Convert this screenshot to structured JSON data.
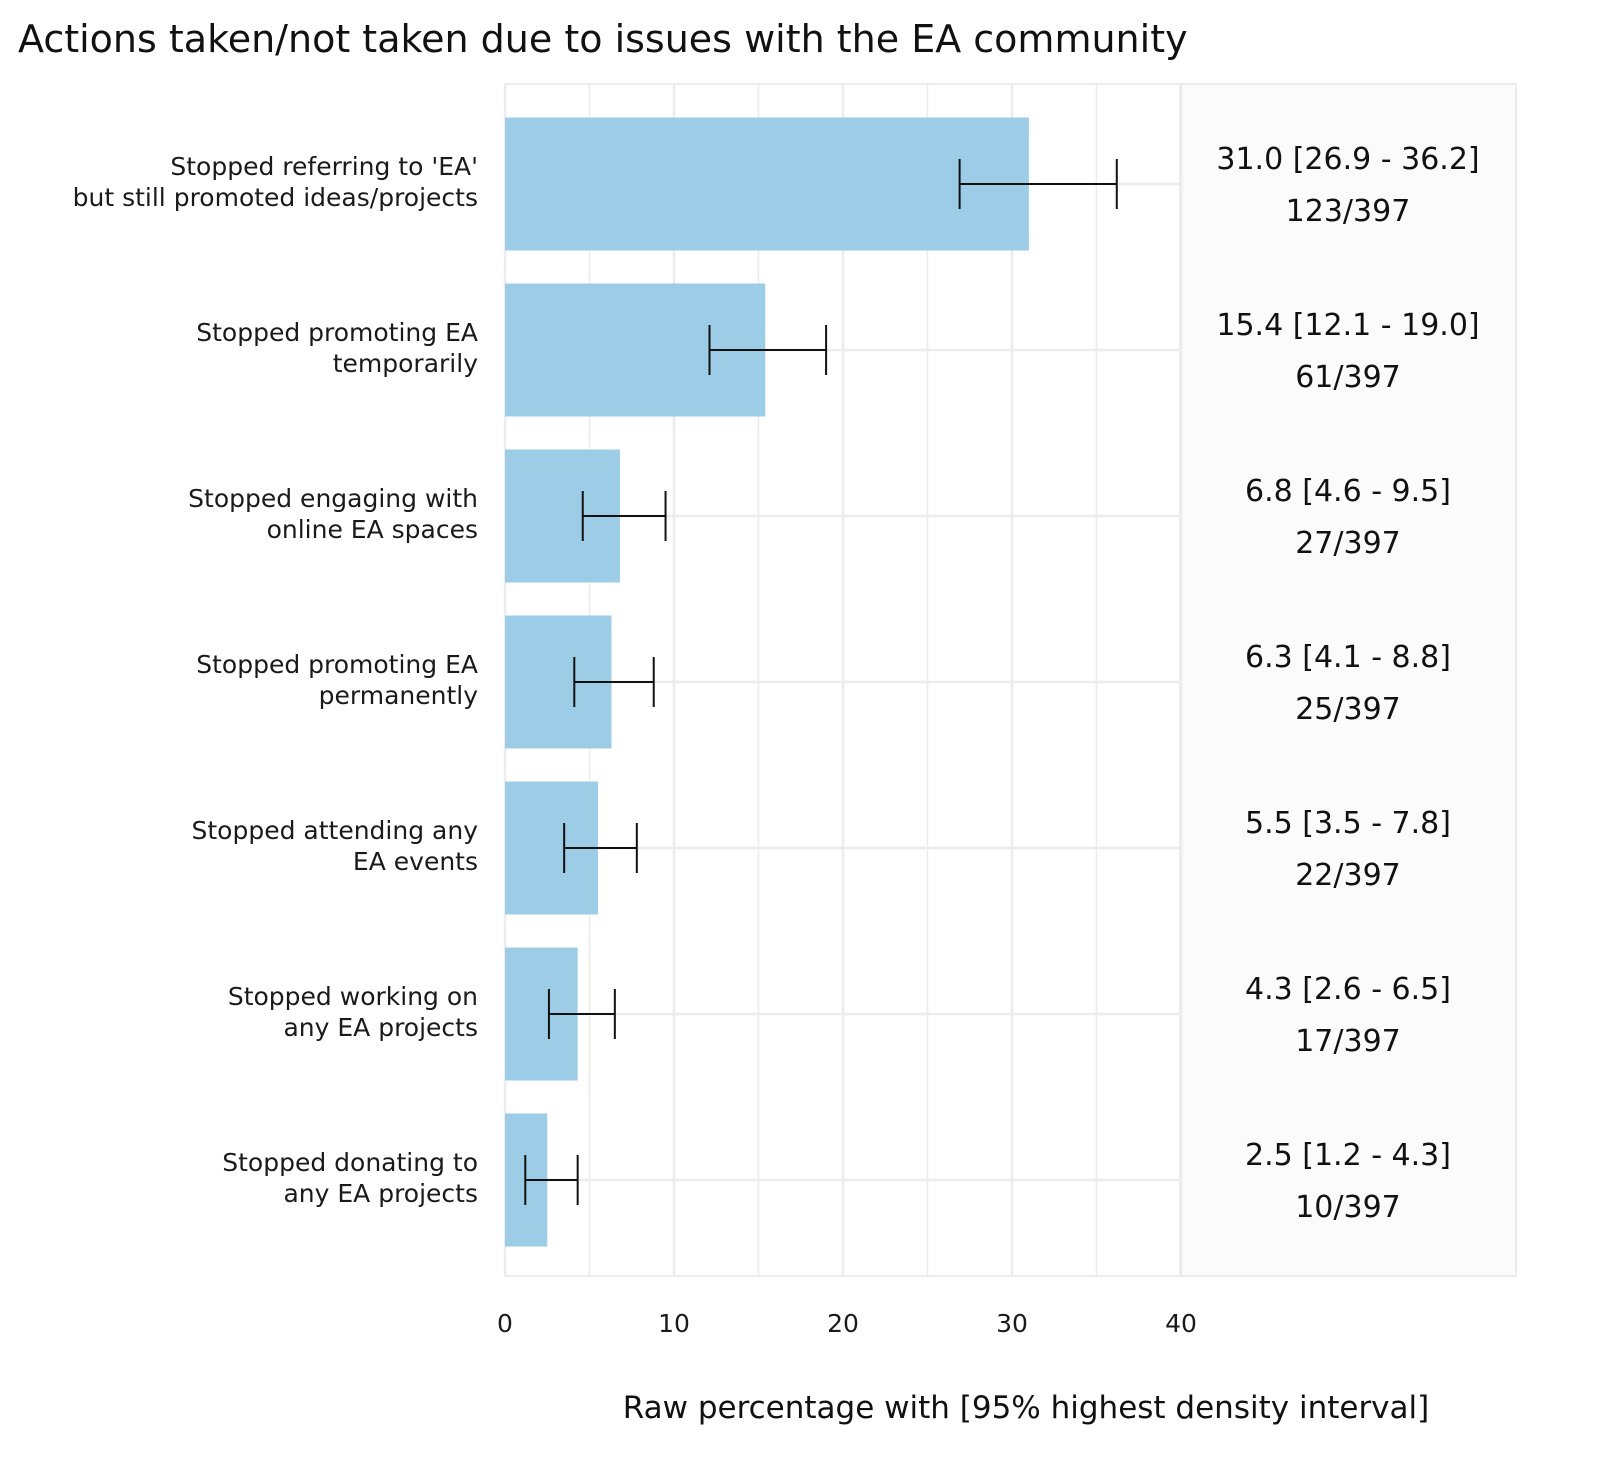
{
  "chart_data": {
    "type": "bar",
    "orientation": "horizontal",
    "title": "Actions taken/not taken due to issues with the EA community",
    "xlabel": "Raw percentage with [95% highest density interval]",
    "ylabel": "",
    "xlim": [
      0,
      40
    ],
    "xticks": [
      "0",
      "10",
      "20",
      "30",
      "40"
    ],
    "grid": true,
    "bar_color": "#9ccce6",
    "categories": [
      [
        "Stopped referring to 'EA'",
        "but still promoted ideas/projects"
      ],
      [
        "Stopped promoting EA",
        "temporarily"
      ],
      [
        "Stopped engaging with",
        "online EA spaces"
      ],
      [
        "Stopped promoting EA",
        "permanently"
      ],
      [
        "Stopped attending any",
        "EA events"
      ],
      [
        "Stopped working on",
        "any EA projects"
      ],
      [
        "Stopped donating to",
        "any EA projects"
      ]
    ],
    "values": [
      31.0,
      15.4,
      6.8,
      6.3,
      5.5,
      4.3,
      2.5
    ],
    "ci_low": [
      26.9,
      12.1,
      4.6,
      4.1,
      3.5,
      2.6,
      1.2
    ],
    "ci_high": [
      36.2,
      19.0,
      9.5,
      8.8,
      7.8,
      6.5,
      4.3
    ],
    "annotations": [
      [
        "31.0 [26.9 - 36.2]",
        "123/397"
      ],
      [
        "15.4 [12.1 - 19.0]",
        "61/397"
      ],
      [
        "6.8 [4.6 - 9.5]",
        "27/397"
      ],
      [
        "6.3 [4.1 - 8.8]",
        "25/397"
      ],
      [
        "5.5 [3.5 - 7.8]",
        "22/397"
      ],
      [
        "4.3 [2.6 - 6.5]",
        "17/397"
      ],
      [
        "2.5 [1.2 - 4.3]",
        "10/397"
      ]
    ]
  }
}
